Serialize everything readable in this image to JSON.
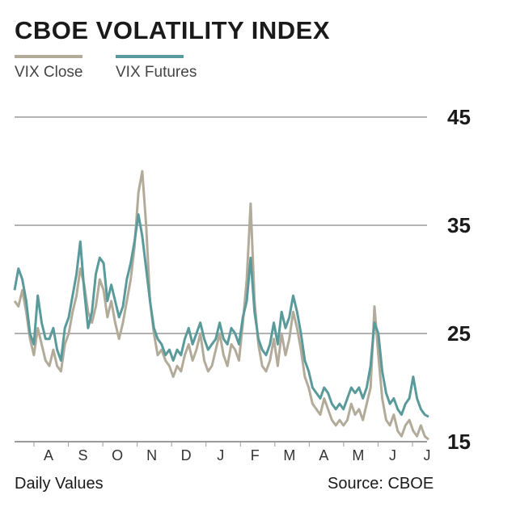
{
  "chart_data": {
    "type": "line",
    "title": "CBOE VOLATILITY INDEX",
    "xlabel": "",
    "ylabel": "",
    "ylim": [
      15,
      45
    ],
    "yticks": [
      15,
      25,
      35,
      45
    ],
    "x_tick_labels": [
      "A",
      "S",
      "O",
      "N",
      "D",
      "J",
      "F",
      "M",
      "A",
      "M",
      "J",
      "J"
    ],
    "grid": true,
    "legend_position": "top-left",
    "footer_left": "Daily Values",
    "footer_right": "Source: CBOE",
    "series": [
      {
        "name": "VIX Close",
        "color": "#b3ab9a",
        "values": [
          28.0,
          27.5,
          29.0,
          27.0,
          24.5,
          23.0,
          25.5,
          24.0,
          22.5,
          22.0,
          23.5,
          22.0,
          21.5,
          24.0,
          25.0,
          27.0,
          28.5,
          31.0,
          29.5,
          27.0,
          26.0,
          27.5,
          30.0,
          29.0,
          26.5,
          28.0,
          26.0,
          24.5,
          26.0,
          28.0,
          30.0,
          33.0,
          38.0,
          40.0,
          35.0,
          28.0,
          25.0,
          23.0,
          23.5,
          22.5,
          22.0,
          21.0,
          22.0,
          21.5,
          23.0,
          24.0,
          22.5,
          23.5,
          25.0,
          22.5,
          21.5,
          22.0,
          23.5,
          25.0,
          23.0,
          22.0,
          24.0,
          23.5,
          22.5,
          26.0,
          30.0,
          37.0,
          28.0,
          24.0,
          22.0,
          21.5,
          22.5,
          24.5,
          22.0,
          25.0,
          23.0,
          24.5,
          27.0,
          25.5,
          23.5,
          21.0,
          20.0,
          18.5,
          18.0,
          17.5,
          19.0,
          18.0,
          17.0,
          16.5,
          17.0,
          16.5,
          17.0,
          18.5,
          17.5,
          18.0,
          17.0,
          18.5,
          20.0,
          27.5,
          23.0,
          19.0,
          17.0,
          16.5,
          17.5,
          16.0,
          15.5,
          16.5,
          17.0,
          16.0,
          15.5,
          16.5,
          15.5,
          15.2
        ]
      },
      {
        "name": "VIX Futures",
        "color": "#5a9a9a",
        "values": [
          29.0,
          31.0,
          30.0,
          28.0,
          25.0,
          24.0,
          28.5,
          26.0,
          24.5,
          24.5,
          25.5,
          23.5,
          22.5,
          25.5,
          26.5,
          28.5,
          30.5,
          33.5,
          29.0,
          25.5,
          27.0,
          30.5,
          32.0,
          31.5,
          28.0,
          29.5,
          28.0,
          26.5,
          27.5,
          30.0,
          31.5,
          33.5,
          36.0,
          34.0,
          31.0,
          28.0,
          25.5,
          24.5,
          24.0,
          23.0,
          23.5,
          22.5,
          23.5,
          23.0,
          24.5,
          25.5,
          24.0,
          25.0,
          26.0,
          24.5,
          23.5,
          24.0,
          24.5,
          26.0,
          24.5,
          24.0,
          25.5,
          25.0,
          24.0,
          26.5,
          28.0,
          32.0,
          27.0,
          24.5,
          23.5,
          23.0,
          24.0,
          26.0,
          24.0,
          27.0,
          25.5,
          26.5,
          28.5,
          27.0,
          25.0,
          22.5,
          21.5,
          20.0,
          19.5,
          19.0,
          20.0,
          19.5,
          18.5,
          18.0,
          18.5,
          18.0,
          19.0,
          20.0,
          19.5,
          20.0,
          19.0,
          20.0,
          22.0,
          26.0,
          25.0,
          21.5,
          19.5,
          18.5,
          19.0,
          18.0,
          17.5,
          18.5,
          19.0,
          21.0,
          19.0,
          18.0,
          17.5,
          17.3
        ]
      }
    ]
  }
}
